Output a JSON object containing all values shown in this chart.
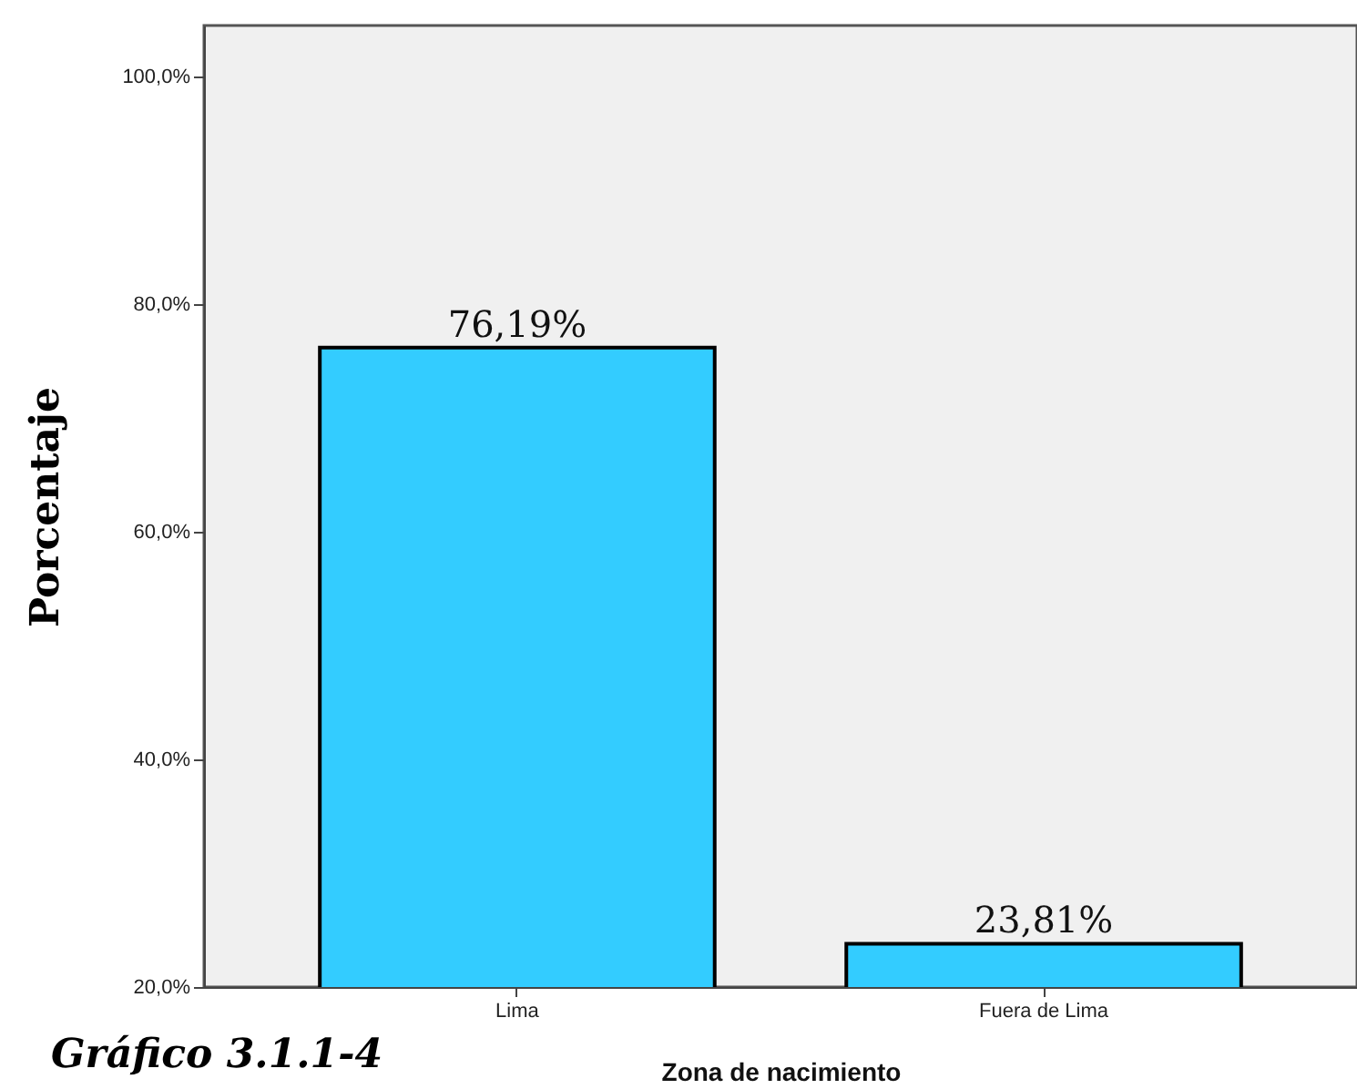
{
  "chart_data": {
    "type": "bar",
    "ylabel": "Porcentaje",
    "xlabel": "Zona de nacimiento",
    "annotations": [
      "Gráfico 3.1.1-4"
    ],
    "categories": [
      "Lima",
      "Fuera de Lima"
    ],
    "values": [
      76.19,
      23.81
    ],
    "value_labels": [
      "76,19%",
      "23,81%"
    ],
    "color": "#33ccff",
    "ylim": [
      20,
      104.5
    ],
    "yticks": [
      {
        "value": 20,
        "label": "20,0%"
      },
      {
        "value": 40,
        "label": "40,0%"
      },
      {
        "value": 60,
        "label": "60,0%"
      },
      {
        "value": 80,
        "label": "80,0%"
      },
      {
        "value": 100,
        "label": "100,0%"
      }
    ],
    "grid": false
  }
}
